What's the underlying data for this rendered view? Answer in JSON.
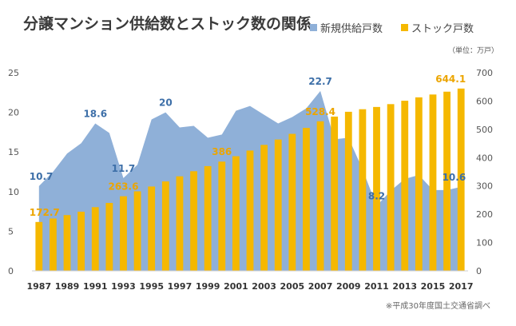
{
  "chart_data": {
    "type": "bar",
    "title": "分譲マンション供給数とストック数の関係",
    "unit_note": "（単位：万戸）",
    "source_note": "※平成30年度国土交通省調べ",
    "legend_position": "top-right",
    "grid": false,
    "colors": {
      "area": "#8fb0d8",
      "bar": "#f5b800",
      "area_label": "#3d6fa8",
      "bar_label": "#eca500",
      "axis": "#cfcfcf"
    },
    "x": [
      1987,
      1988,
      1989,
      1990,
      1991,
      1992,
      1993,
      1994,
      1995,
      1996,
      1997,
      1998,
      1999,
      2000,
      2001,
      2002,
      2003,
      2004,
      2005,
      2006,
      2007,
      2008,
      2009,
      2010,
      2011,
      2012,
      2013,
      2014,
      2015,
      2016,
      2017
    ],
    "x_tick_labels": [
      "1987",
      "1989",
      "1991",
      "1993",
      "1995",
      "1997",
      "1999",
      "2001",
      "2003",
      "2005",
      "2007",
      "2009",
      "2011",
      "2013",
      "2015",
      "2017"
    ],
    "y_left_ticks": [
      "0",
      "5",
      "10",
      "15",
      "20",
      "25"
    ],
    "y_right_ticks": [
      "0",
      "100",
      "200",
      "300",
      "400",
      "500",
      "600",
      "700"
    ],
    "ylim_left": [
      0,
      25
    ],
    "ylim_right": [
      0,
      700
    ],
    "series": [
      {
        "name": "新規供給戸数",
        "kind": "area",
        "axis": "left",
        "values": [
          10.7,
          12.5,
          14.8,
          16.1,
          18.6,
          17.4,
          11.7,
          13.4,
          19.1,
          20.0,
          18.1,
          18.3,
          16.8,
          17.2,
          20.2,
          20.8,
          19.7,
          18.6,
          19.4,
          20.5,
          22.7,
          16.6,
          16.8,
          12.8,
          8.2,
          10.1,
          11.6,
          12.1,
          10.2,
          10.2,
          10.6
        ]
      },
      {
        "name": "ストック戸数",
        "kind": "bar",
        "axis": "right",
        "values": [
          172.7,
          185,
          197,
          209,
          225,
          240,
          263.6,
          281,
          298,
          316,
          334,
          352,
          370,
          386,
          405,
          425,
          445,
          464,
          484,
          505,
          528.4,
          545,
          562,
          571,
          579,
          589,
          601,
          613,
          623,
          633,
          644.1
        ]
      }
    ],
    "data_labels": [
      {
        "series": 0,
        "index": 0,
        "text": "10.7"
      },
      {
        "series": 0,
        "index": 4,
        "text": "18.6"
      },
      {
        "series": 0,
        "index": 6,
        "text": "11.7"
      },
      {
        "series": 0,
        "index": 9,
        "text": "20"
      },
      {
        "series": 0,
        "index": 20,
        "text": "22.7"
      },
      {
        "series": 0,
        "index": 24,
        "text": "8.2"
      },
      {
        "series": 0,
        "index": 30,
        "text": "10.6"
      },
      {
        "series": 1,
        "index": 0,
        "text": "172.7"
      },
      {
        "series": 1,
        "index": 6,
        "text": "263.6"
      },
      {
        "series": 1,
        "index": 13,
        "text": "386"
      },
      {
        "series": 1,
        "index": 20,
        "text": "528.4"
      },
      {
        "series": 1,
        "index": 30,
        "text": "644.1"
      }
    ]
  }
}
